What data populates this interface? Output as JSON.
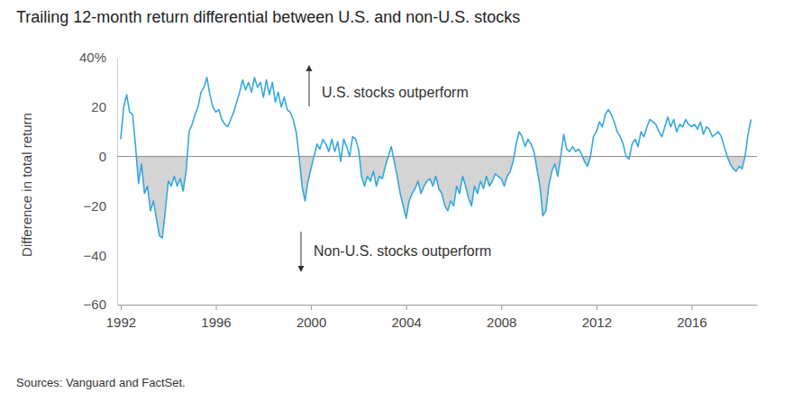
{
  "chart_data": {
    "type": "line",
    "title": "Trailing 12-month return differential between U.S. and non-U.S. stocks",
    "y_label": "Difference in total return",
    "annotations": [
      "U.S. stocks outperform",
      "Non-U.S. stocks outperform"
    ],
    "source": "Sources: Vanguard and FactSet.",
    "color": "#35a8dd",
    "grid": false,
    "xlim": [
      1991.85,
      2018.75
    ],
    "xticks": [
      1992,
      1996,
      2000,
      2004,
      2008,
      2012,
      2016
    ],
    "ylim": [
      -60,
      40
    ],
    "yticks": [
      {
        "value": 40,
        "label": "40%"
      },
      20,
      0,
      {
        "value": -20,
        "label": "−20"
      },
      {
        "value": -40,
        "label": "−40"
      },
      {
        "value": -60,
        "label": "−60"
      }
    ],
    "x": [
      1992,
      1992.125,
      1992.25,
      1992.375,
      1992.5,
      1992.625,
      1992.75,
      1992.875,
      1993,
      1993.125,
      1993.25,
      1993.375,
      1993.5,
      1993.625,
      1993.75,
      1993.875,
      1994,
      1994.125,
      1994.25,
      1994.375,
      1994.5,
      1994.625,
      1994.75,
      1994.875,
      1995,
      1995.125,
      1995.25,
      1995.375,
      1995.5,
      1995.625,
      1995.75,
      1995.875,
      1996,
      1996.125,
      1996.25,
      1996.375,
      1996.5,
      1996.625,
      1996.75,
      1996.875,
      1997,
      1997.125,
      1997.25,
      1997.375,
      1997.5,
      1997.625,
      1997.75,
      1997.875,
      1998,
      1998.125,
      1998.25,
      1998.375,
      1998.5,
      1998.625,
      1998.75,
      1998.875,
      1999,
      1999.125,
      1999.25,
      1999.375,
      1999.5,
      1999.625,
      1999.75,
      1999.875,
      2000,
      2000.125,
      2000.25,
      2000.375,
      2000.5,
      2000.625,
      2000.75,
      2000.875,
      2001,
      2001.125,
      2001.25,
      2001.375,
      2001.5,
      2001.625,
      2001.75,
      2001.875,
      2002,
      2002.125,
      2002.25,
      2002.375,
      2002.5,
      2002.625,
      2002.75,
      2002.875,
      2003,
      2003.125,
      2003.25,
      2003.375,
      2003.5,
      2003.625,
      2003.75,
      2003.875,
      2004,
      2004.125,
      2004.25,
      2004.375,
      2004.5,
      2004.625,
      2004.75,
      2004.875,
      2005,
      2005.125,
      2005.25,
      2005.375,
      2005.5,
      2005.625,
      2005.75,
      2005.875,
      2006,
      2006.125,
      2006.25,
      2006.375,
      2006.5,
      2006.625,
      2006.75,
      2006.875,
      2007,
      2007.125,
      2007.25,
      2007.375,
      2007.5,
      2007.625,
      2007.75,
      2007.875,
      2008,
      2008.125,
      2008.25,
      2008.375,
      2008.5,
      2008.625,
      2008.75,
      2008.875,
      2009,
      2009.125,
      2009.25,
      2009.375,
      2009.5,
      2009.625,
      2009.75,
      2009.875,
      2010,
      2010.125,
      2010.25,
      2010.375,
      2010.5,
      2010.625,
      2010.75,
      2010.875,
      2011,
      2011.125,
      2011.25,
      2011.375,
      2011.5,
      2011.625,
      2011.75,
      2011.875,
      2012,
      2012.125,
      2012.25,
      2012.375,
      2012.5,
      2012.625,
      2012.75,
      2012.875,
      2013,
      2013.125,
      2013.25,
      2013.375,
      2013.5,
      2013.625,
      2013.75,
      2013.875,
      2014,
      2014.125,
      2014.25,
      2014.375,
      2014.5,
      2014.625,
      2014.75,
      2014.875,
      2015,
      2015.125,
      2015.25,
      2015.375,
      2015.5,
      2015.625,
      2015.75,
      2015.875,
      2016,
      2016.125,
      2016.25,
      2016.375,
      2016.5,
      2016.625,
      2016.75,
      2016.875,
      2017,
      2017.125,
      2017.25,
      2017.375,
      2017.5,
      2017.625,
      2017.75,
      2017.875,
      2018,
      2018.125,
      2018.25,
      2018.375,
      2018.5
    ],
    "values": [
      7,
      20,
      25,
      18,
      17,
      4,
      -11,
      -3,
      -15,
      -12,
      -22,
      -18,
      -25,
      -32,
      -33,
      -22,
      -10,
      -12,
      -8,
      -12,
      -9,
      -14,
      -6,
      10,
      13,
      17,
      20,
      26,
      28,
      32,
      25,
      20,
      18,
      19,
      15,
      13,
      12,
      15,
      18,
      22,
      26,
      31,
      27,
      30,
      26,
      32,
      28,
      30,
      24,
      31,
      25,
      30,
      22,
      26,
      20,
      24,
      19,
      18,
      15,
      10,
      0,
      -12,
      -18,
      -10,
      -5,
      0,
      5,
      3,
      7,
      5,
      2,
      7,
      2,
      6,
      -2,
      7,
      4,
      0,
      8,
      7,
      3,
      -8,
      -12,
      -8,
      -10,
      -6,
      -12,
      -8,
      -9,
      -4,
      0,
      4,
      -2,
      -8,
      -15,
      -20,
      -25,
      -18,
      -15,
      -13,
      -10,
      -15,
      -12,
      -10,
      -9,
      -12,
      -8,
      -13,
      -15,
      -20,
      -22,
      -18,
      -20,
      -12,
      -15,
      -8,
      -12,
      -17,
      -20,
      -12,
      -15,
      -10,
      -13,
      -8,
      -12,
      -10,
      -7,
      -8,
      -9,
      -12,
      -8,
      -6,
      -2,
      5,
      10,
      8,
      4,
      7,
      5,
      2,
      -5,
      -12,
      -24,
      -22,
      -12,
      -6,
      -3,
      -8,
      0,
      9,
      3,
      2,
      4,
      2,
      3,
      1,
      -2,
      -4,
      0,
      8,
      10,
      14,
      12,
      17,
      19,
      17,
      14,
      10,
      8,
      5,
      0,
      -1,
      5,
      7,
      4,
      10,
      8,
      12,
      15,
      14,
      13,
      10,
      8,
      12,
      16,
      12,
      15,
      10,
      13,
      12,
      15,
      13,
      12,
      13,
      11,
      14,
      9,
      12,
      11,
      8,
      9,
      10,
      8,
      4,
      0,
      -3,
      -5,
      -6,
      -4,
      -5,
      0,
      9,
      15
    ]
  }
}
